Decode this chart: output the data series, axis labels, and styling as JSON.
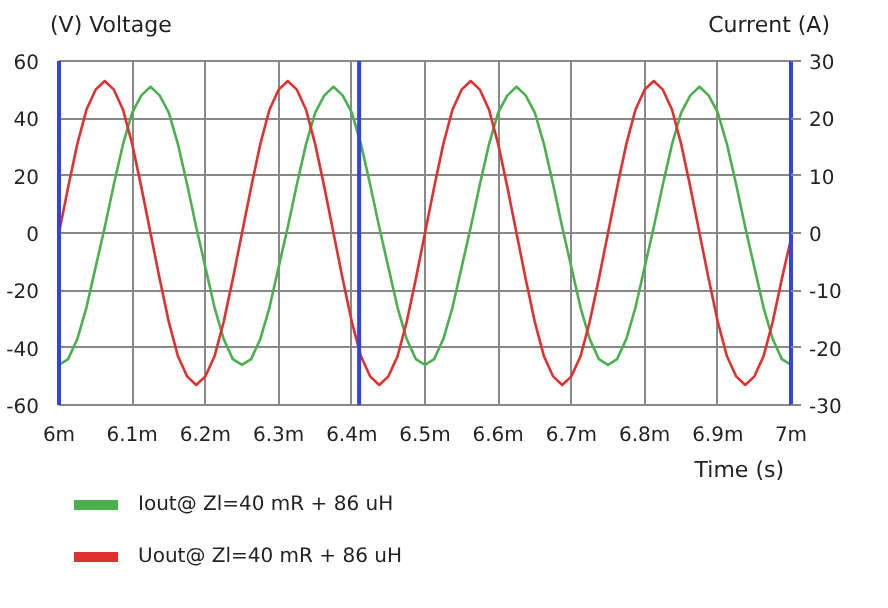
{
  "chart_data": {
    "type": "line",
    "ylabel": "(V)  Voltage",
    "y2label": "Current  (A)",
    "xlabel": "Time  (s)",
    "x": [
      6,
      6.0125,
      6.025,
      6.0375,
      6.05,
      6.0625,
      6.075,
      6.0875,
      6.1,
      6.1125,
      6.125,
      6.1375,
      6.15,
      6.1625,
      6.175,
      6.1875,
      6.2,
      6.2125,
      6.225,
      6.2375,
      6.25,
      6.2625,
      6.275,
      6.2875,
      6.3,
      6.3125,
      6.325,
      6.3375,
      6.35,
      6.3625,
      6.375,
      6.3875,
      6.4,
      6.4125,
      6.425,
      6.4375,
      6.45,
      6.4625,
      6.475,
      6.4875,
      6.5,
      6.5125,
      6.525,
      6.5375,
      6.55,
      6.5625,
      6.575,
      6.5875,
      6.6,
      6.6125,
      6.625,
      6.6375,
      6.65,
      6.6625,
      6.675,
      6.6875,
      6.7,
      6.7125,
      6.725,
      6.7375,
      6.75,
      6.7625,
      6.775,
      6.7875,
      6.8,
      6.8125,
      6.825,
      6.8375,
      6.85,
      6.8625,
      6.875,
      6.8875,
      6.9,
      6.9125,
      6.925,
      6.9375,
      6.95,
      6.9625,
      6.975,
      6.9875,
      7
    ],
    "series": [
      {
        "name": "Iout@ Zl=40 mR + 86 uH",
        "color": "#4caf50",
        "axis": "y2",
        "values": [
          -23,
          -22,
          -18.5,
          -13,
          -6,
          1,
          8.5,
          15.5,
          21,
          24,
          25.5,
          24,
          21,
          15.5,
          8.5,
          1,
          -6,
          -13,
          -18.5,
          -22,
          -23,
          -22,
          -18.5,
          -13,
          -6,
          1,
          8.5,
          15.5,
          21,
          24,
          25.5,
          24,
          21,
          15.5,
          8.5,
          1,
          -6,
          -13,
          -18.5,
          -22,
          -23,
          -22,
          -18.5,
          -13,
          -6,
          1,
          8.5,
          15.5,
          21,
          24,
          25.5,
          24,
          21,
          15.5,
          8.5,
          1,
          -6,
          -13,
          -18.5,
          -22,
          -23,
          -22,
          -18.5,
          -13,
          -6,
          1,
          8.5,
          15.5,
          21,
          24,
          25.5,
          24,
          21,
          15.5,
          8.5,
          1,
          -6,
          -13,
          -18.5,
          -22,
          -23
        ]
      },
      {
        "name": "Uout@ Zl=40 mR + 86 uH",
        "color": "#e03030",
        "values": [
          0,
          16,
          31,
          43,
          50,
          53,
          50,
          43,
          31,
          16,
          0,
          -16,
          -31,
          -43,
          -50,
          -53,
          -50,
          -43,
          -31,
          -16,
          0,
          16,
          31,
          43,
          50,
          53,
          50,
          43,
          31,
          16,
          0,
          -16,
          -31,
          -43,
          -50,
          -53,
          -50,
          -43,
          -31,
          -16,
          0,
          16,
          31,
          43,
          50,
          53,
          50,
          43,
          31,
          16,
          0,
          -16,
          -31,
          -43,
          -50,
          -53,
          -50,
          -43,
          -31,
          -16,
          0,
          16,
          31,
          43,
          50,
          53,
          50,
          43,
          31,
          16,
          0,
          -16,
          -31,
          -43,
          -50,
          -53,
          -50,
          -43,
          -31,
          -16,
          -2
        ]
      }
    ],
    "xlim": [
      6,
      7
    ],
    "xticks": [
      {
        "value": 6,
        "label": "6m"
      },
      {
        "value": 6.1,
        "label": "6.1m"
      },
      {
        "value": 6.2,
        "label": "6.2m"
      },
      {
        "value": 6.3,
        "label": "6.3m"
      },
      {
        "value": 6.4,
        "label": "6.4m"
      },
      {
        "value": 6.5,
        "label": "6.5m"
      },
      {
        "value": 6.6,
        "label": "6.6m"
      },
      {
        "value": 6.7,
        "label": "6.7m"
      },
      {
        "value": 6.8,
        "label": "6.8m"
      },
      {
        "value": 6.9,
        "label": "6.9m"
      },
      {
        "value": 7,
        "label": "7m"
      }
    ],
    "ylim": [
      -60,
      60
    ],
    "yticks": [
      -60,
      -40,
      -20,
      0,
      20,
      40,
      60
    ],
    "y2lim": [
      -30,
      30
    ],
    "y2ticks": [
      -30,
      -20,
      -10,
      0,
      10,
      20,
      30
    ],
    "ref_lines": [
      {
        "axis": "x",
        "value": 6.41,
        "color": "#3344dd"
      }
    ],
    "grid": true,
    "legend": "bottom",
    "line_style": "solid",
    "marker": "none"
  }
}
